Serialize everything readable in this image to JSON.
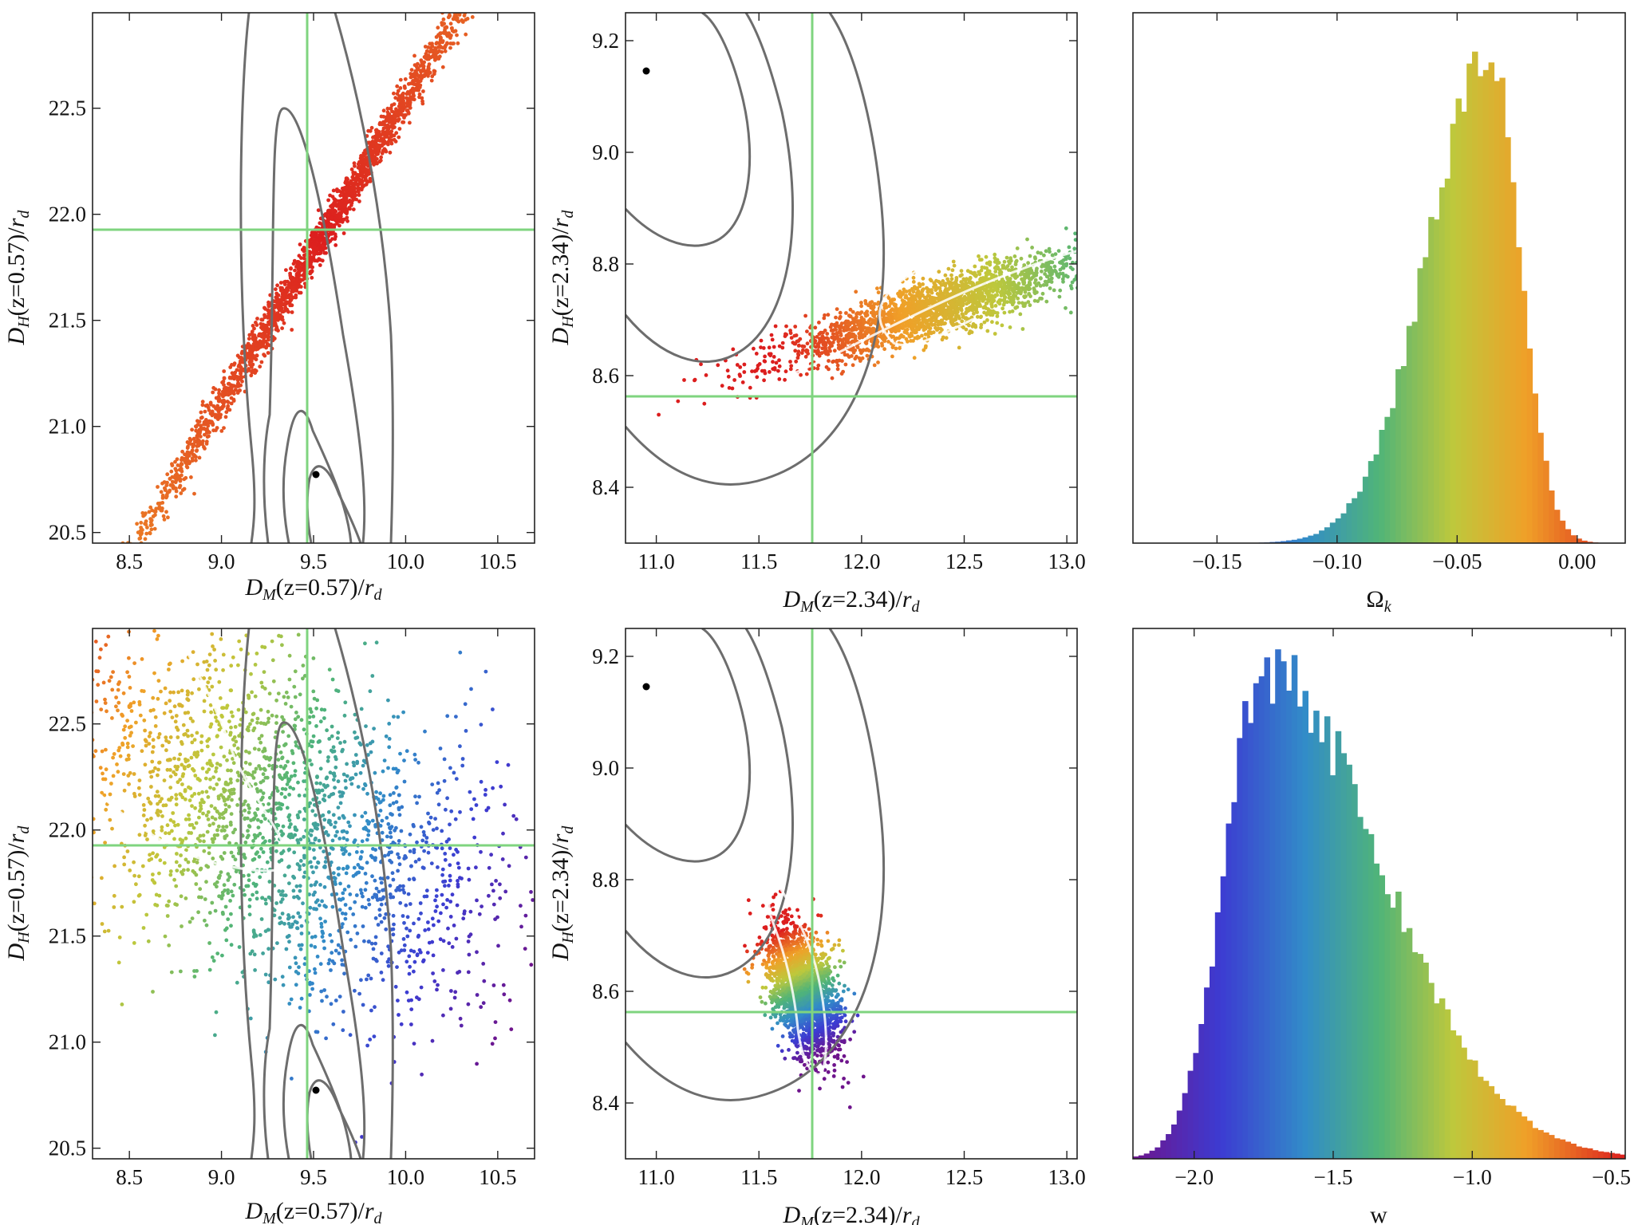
{
  "chart_data": [
    {
      "id": "p1",
      "type": "scatter",
      "xlabel": "D_M(z=0.57)/r_d",
      "ylabel": "D_H(z=0.57)/r_d",
      "xlim": [
        8.3,
        10.7
      ],
      "ylim": [
        20.45,
        22.95
      ],
      "xticks": [
        "8.5",
        "9.0",
        "9.5",
        "10.0",
        "10.5"
      ],
      "yticks": [
        "20.5",
        "21.0",
        "21.5",
        "22.0",
        "22.5"
      ],
      "fiducial": {
        "x": 9.48,
        "y": 21.93
      },
      "marker": {
        "x": 9.53,
        "y": 20.75
      },
      "scatter": {
        "center": [
          9.55,
          21.9
        ],
        "angle": 0.94,
        "major": 1.75,
        "minor": 0.03,
        "colorscale": "red-orange"
      }
    },
    {
      "id": "p2",
      "type": "scatter",
      "xlabel": "D_M(z=2.34)/r_d",
      "ylabel": "D_H(z=2.34)/r_d",
      "xlim": [
        10.85,
        13.05
      ],
      "ylim": [
        8.3,
        9.25
      ],
      "xticks": [
        "11.0",
        "11.5",
        "12.0",
        "12.5",
        "13.0"
      ],
      "yticks": [
        "8.4",
        "8.6",
        "8.8",
        "9.0",
        "9.2"
      ],
      "fiducial": {
        "x": 11.75,
        "y": 8.56
      },
      "marker": {
        "x": 10.95,
        "y": 9.14
      },
      "scatter": {
        "center": [
          12.35,
          8.72
        ],
        "angle": 0.26,
        "major": 0.85,
        "minor": 0.06,
        "colorscale": "red-orange-green"
      }
    },
    {
      "id": "p3",
      "type": "histogram",
      "xlabel": "Ω_k",
      "ylabel": "",
      "xlim": [
        -0.185,
        0.02
      ],
      "xticks": [
        "−0.15",
        "−0.10",
        "−0.05",
        "0.00"
      ],
      "tick_values": [
        -0.15,
        -0.1,
        -0.05,
        0.0
      ],
      "peak": -0.036,
      "sigma_left": 0.026,
      "sigma_right": 0.012
    },
    {
      "id": "p4",
      "type": "scatter",
      "xlabel": "D_M(z=0.57)/r_d",
      "ylabel": "D_H(z=0.57)/r_d",
      "xlim": [
        8.3,
        10.7
      ],
      "ylim": [
        20.45,
        22.95
      ],
      "xticks": [
        "8.5",
        "9.0",
        "9.5",
        "10.0",
        "10.5"
      ],
      "yticks": [
        "20.5",
        "21.0",
        "21.5",
        "22.0",
        "22.5"
      ],
      "fiducial": {
        "x": 9.48,
        "y": 21.93
      },
      "marker": {
        "x": 9.53,
        "y": 20.75
      },
      "scatter": {
        "center": [
          9.3,
          22.05
        ],
        "angle": -0.45,
        "major": 1.35,
        "minor": 0.35,
        "colorscale": "rainbow"
      }
    },
    {
      "id": "p5",
      "type": "scatter",
      "xlabel": "D_M(z=2.34)/r_d",
      "ylabel": "D_H(z=2.34)/r_d",
      "xlim": [
        10.85,
        13.05
      ],
      "ylim": [
        8.3,
        9.25
      ],
      "xticks": [
        "11.0",
        "11.5",
        "12.0",
        "12.5",
        "13.0"
      ],
      "yticks": [
        "8.4",
        "8.6",
        "8.8",
        "9.0",
        "9.2"
      ],
      "fiducial": {
        "x": 11.75,
        "y": 8.56
      },
      "marker": {
        "x": 10.95,
        "y": 9.14
      },
      "scatter": {
        "center": [
          11.72,
          8.6
        ],
        "angle": -1.2,
        "major": 0.3,
        "minor": 0.08,
        "colorscale": "rainbow-reverse"
      }
    },
    {
      "id": "p6",
      "type": "histogram",
      "xlabel": "w",
      "ylabel": "",
      "xlim": [
        -2.22,
        -0.45
      ],
      "xticks": [
        "−2.0",
        "−1.5",
        "−1.0",
        "−0.5"
      ],
      "tick_values": [
        -2.0,
        -1.5,
        -1.0,
        -0.5
      ],
      "peak": -1.75,
      "sigma_left": 0.14,
      "sigma_right": 0.42
    }
  ]
}
